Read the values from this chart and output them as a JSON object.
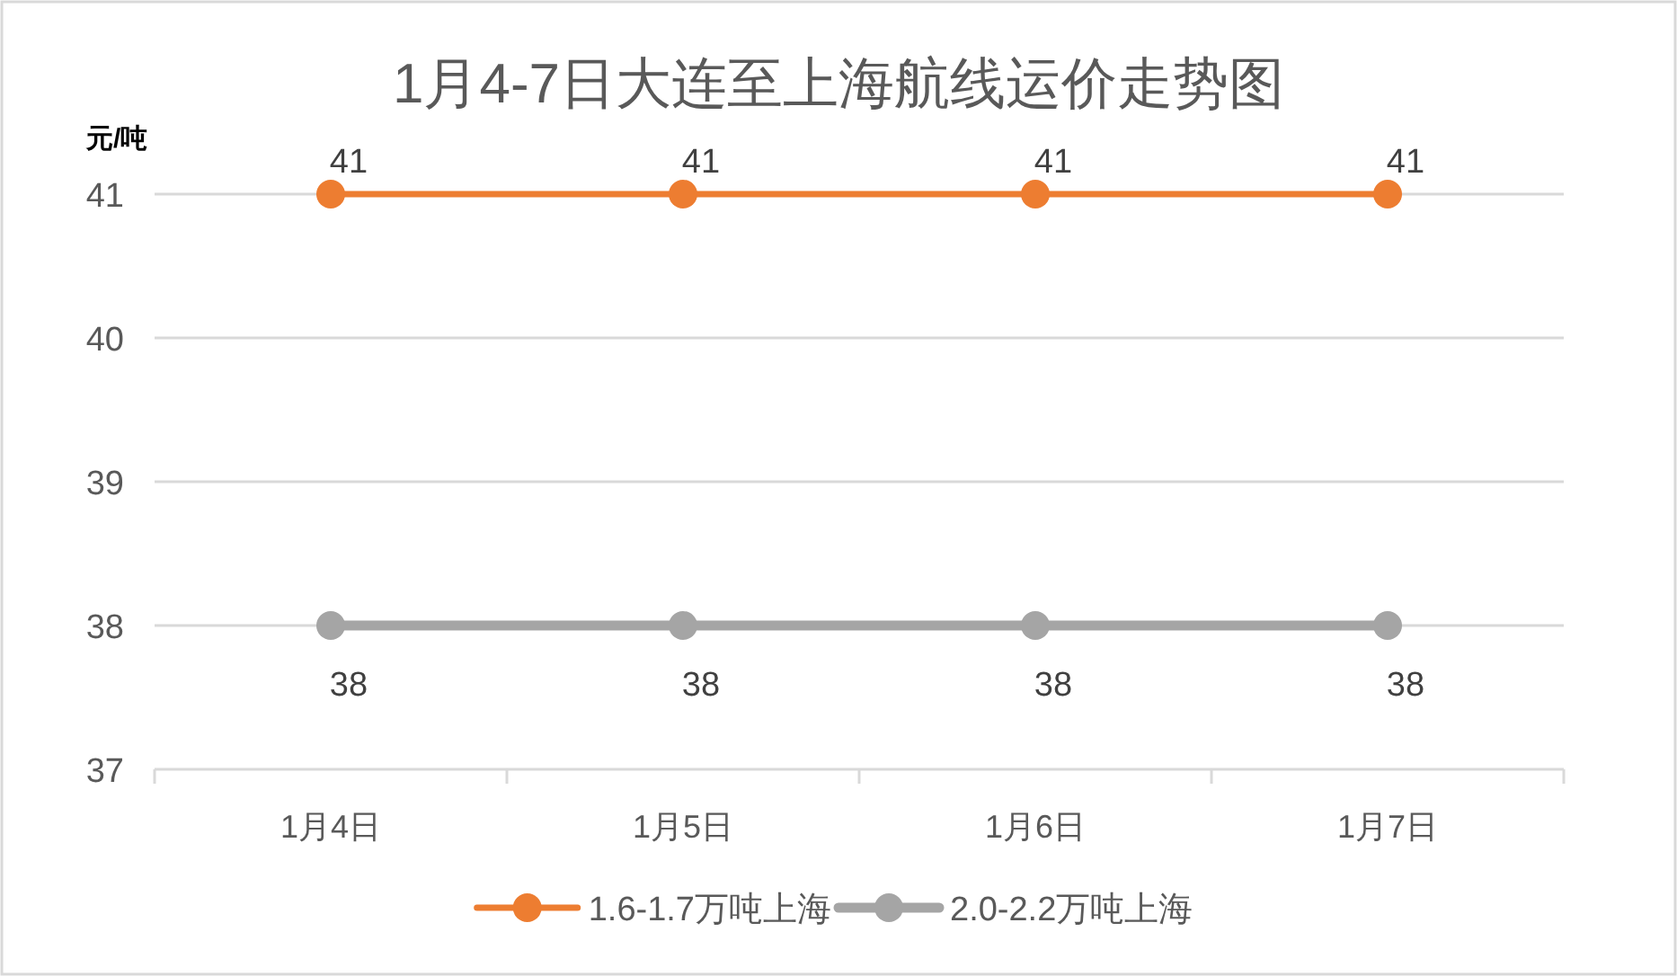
{
  "chart_data": {
    "type": "line",
    "title": "1月4-7日大连至上海航线运价走势图",
    "ylabel": "元/吨",
    "categories": [
      "1月4日",
      "1月5日",
      "1月6日",
      "1月7日"
    ],
    "series": [
      {
        "name": "1.6-1.7万吨上海",
        "color": "#ed7d31",
        "values": [
          41,
          41,
          41,
          41
        ]
      },
      {
        "name": "2.0-2.2万吨上海",
        "color": "#a5a5a5",
        "values": [
          38,
          38,
          38,
          38
        ]
      }
    ],
    "ylim": [
      37,
      41
    ],
    "yticks": [
      37,
      38,
      39,
      40,
      41
    ],
    "grid": "y",
    "legend": "bottom",
    "marker": "circle",
    "line_style": "solid",
    "data_labels": true
  }
}
